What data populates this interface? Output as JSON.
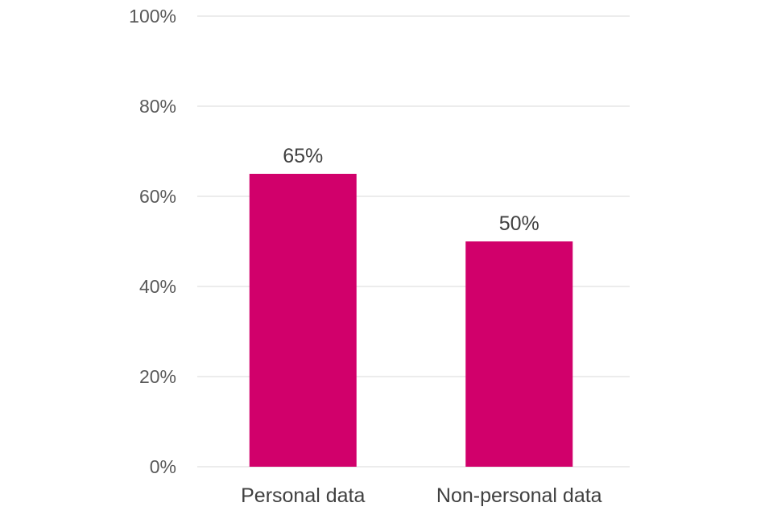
{
  "chart_data": {
    "type": "bar",
    "categories": [
      "Personal data",
      "Non-personal data"
    ],
    "values": [
      65,
      50
    ],
    "data_labels": [
      "65%",
      "50%"
    ],
    "ylim": [
      0,
      100
    ],
    "y_ticks": [
      0,
      20,
      40,
      60,
      80,
      100
    ],
    "y_tick_labels": [
      "0%",
      "20%",
      "40%",
      "60%",
      "80%",
      "100%"
    ],
    "grid": true,
    "legend": "none",
    "colors": {
      "bar": "#d1006b",
      "grid": "#d9d9d9"
    }
  }
}
